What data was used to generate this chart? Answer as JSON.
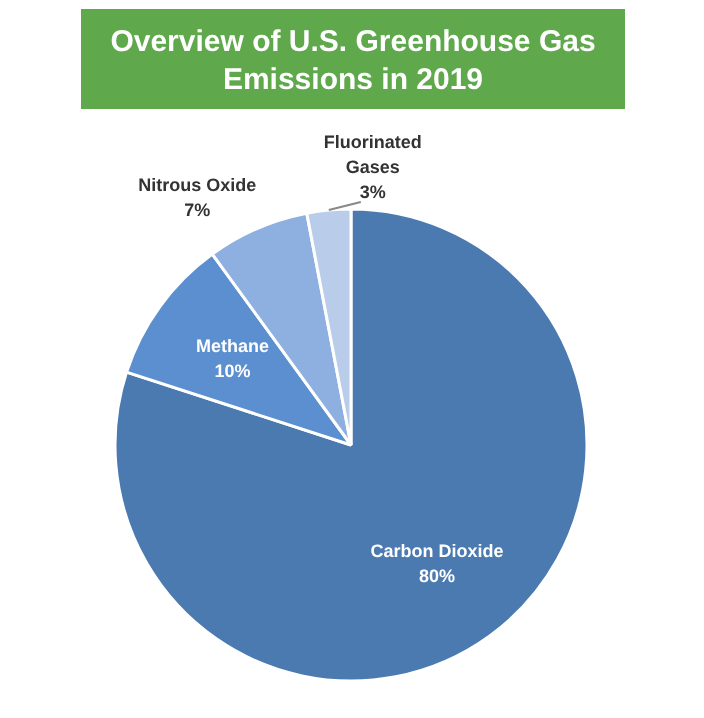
{
  "chart_data": {
    "type": "pie",
    "title": "Overview of U.S. Greenhouse Gas\nEmissions in 2019",
    "categories": [
      "Carbon Dioxide",
      "Methane",
      "Nitrous Oxide",
      "Fluorinated\nGases"
    ],
    "values": [
      80,
      10,
      7,
      3
    ],
    "value_labels": [
      "80%",
      "10%",
      "7%",
      "3%"
    ],
    "colors": [
      "#4a7ab0",
      "#5b8fcf",
      "#8eb0e0",
      "#b9cdea"
    ]
  }
}
